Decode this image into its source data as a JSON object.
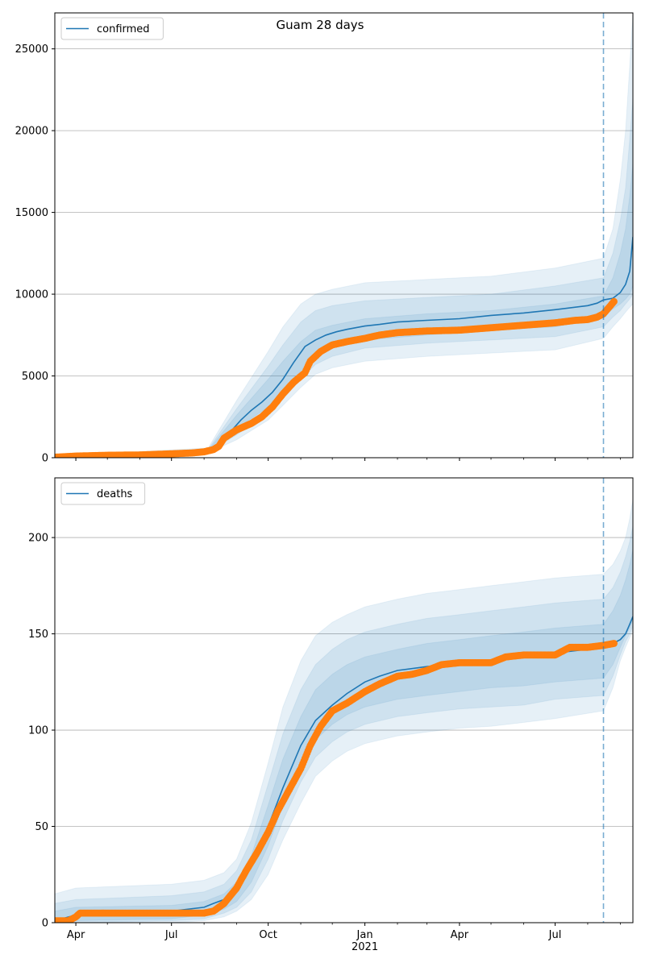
{
  "figure": {
    "title": "Guam 28 days"
  },
  "colors": {
    "model_line": "#1f77b4",
    "observed": "#ff7f0e",
    "band": "#1f77b4",
    "grid": "#b0b0b0",
    "forecast_marker": "#1f77b4"
  },
  "chart_data": [
    {
      "type": "line",
      "legend": "confirmed",
      "legend_position": "top-left",
      "grid": "y",
      "xlim": [
        "2020-03-12",
        "2021-09-13"
      ],
      "ylim": [
        0,
        27200
      ],
      "yticks": [
        0,
        5000,
        10000,
        15000,
        20000,
        25000
      ],
      "forecast_start": "2021-08-16",
      "series": [
        {
          "name": "confirmed",
          "kind": "model",
          "x": [
            "2020-03-12",
            "2020-06-01",
            "2020-07-15",
            "2020-08-05",
            "2020-08-15",
            "2020-08-25",
            "2020-09-05",
            "2020-09-15",
            "2020-09-25",
            "2020-10-05",
            "2020-10-15",
            "2020-10-25",
            "2020-11-05",
            "2020-11-15",
            "2020-11-25",
            "2020-12-05",
            "2020-12-15",
            "2021-01-01",
            "2021-01-15",
            "2021-02-01",
            "2021-03-01",
            "2021-04-01",
            "2021-05-01",
            "2021-06-01",
            "2021-07-01",
            "2021-08-01",
            "2021-08-10",
            "2021-08-16",
            "2021-08-25",
            "2021-09-01",
            "2021-09-06",
            "2021-09-10",
            "2021-09-13"
          ],
          "y": [
            60,
            150,
            250,
            420,
            800,
            1500,
            2300,
            2900,
            3400,
            4000,
            4800,
            5800,
            6800,
            7200,
            7500,
            7700,
            7850,
            8050,
            8150,
            8300,
            8400,
            8500,
            8700,
            8850,
            9050,
            9300,
            9450,
            9650,
            9750,
            10100,
            10600,
            11400,
            13500
          ]
        },
        {
          "name": "observed",
          "kind": "observed",
          "x": [
            "2020-03-12",
            "2020-04-01",
            "2020-05-01",
            "2020-06-01",
            "2020-07-01",
            "2020-07-20",
            "2020-08-01",
            "2020-08-10",
            "2020-08-15",
            "2020-08-20",
            "2020-09-01",
            "2020-09-15",
            "2020-09-25",
            "2020-10-05",
            "2020-10-15",
            "2020-10-25",
            "2020-11-05",
            "2020-11-10",
            "2020-11-20",
            "2020-12-01",
            "2020-12-15",
            "2021-01-01",
            "2021-01-15",
            "2021-02-01",
            "2021-03-01",
            "2021-04-01",
            "2021-05-01",
            "2021-06-01",
            "2021-07-01",
            "2021-07-20",
            "2021-08-01",
            "2021-08-10",
            "2021-08-16",
            "2021-08-20",
            "2021-08-26"
          ],
          "y": [
            30,
            100,
            150,
            170,
            240,
            290,
            360,
            500,
            700,
            1200,
            1700,
            2100,
            2500,
            3100,
            3900,
            4600,
            5200,
            5900,
            6500,
            6900,
            7100,
            7300,
            7500,
            7650,
            7750,
            7800,
            7950,
            8100,
            8250,
            8400,
            8450,
            8600,
            8800,
            9100,
            9550
          ]
        }
      ],
      "bands": [
        {
          "level": "outer",
          "x": [
            "2020-03-12",
            "2020-08-05",
            "2020-09-01",
            "2020-10-01",
            "2020-10-15",
            "2020-11-01",
            "2020-11-15",
            "2020-12-01",
            "2021-01-01",
            "2021-03-01",
            "2021-05-01",
            "2021-07-01",
            "2021-08-16",
            "2021-08-25",
            "2021-09-01",
            "2021-09-06",
            "2021-09-10",
            "2021-09-13"
          ],
          "lower": [
            40,
            300,
            1100,
            2300,
            3200,
            4300,
            5100,
            5500,
            5900,
            6200,
            6400,
            6600,
            7300,
            8000,
            8500,
            8900,
            9200,
            9400
          ],
          "upper": [
            100,
            600,
            3500,
            6500,
            8000,
            9400,
            10000,
            10300,
            10700,
            10900,
            11100,
            11600,
            12200,
            14000,
            17000,
            20000,
            24000,
            27200
          ]
        },
        {
          "level": "middle",
          "x": [
            "2020-03-12",
            "2020-08-05",
            "2020-09-01",
            "2020-10-01",
            "2020-10-15",
            "2020-11-01",
            "2020-11-15",
            "2020-12-01",
            "2021-01-01",
            "2021-03-01",
            "2021-05-01",
            "2021-07-01",
            "2021-08-16",
            "2021-08-25",
            "2021-09-01",
            "2021-09-06",
            "2021-09-10",
            "2021-09-13"
          ],
          "lower": [
            50,
            350,
            1400,
            2700,
            3600,
            4800,
            5700,
            6200,
            6700,
            7000,
            7200,
            7400,
            8000,
            8600,
            9000,
            9400,
            9700,
            10000
          ],
          "upper": [
            90,
            520,
            3000,
            5600,
            6900,
            8300,
            9000,
            9300,
            9600,
            9800,
            10000,
            10500,
            11000,
            12500,
            14500,
            16500,
            19500,
            22000
          ]
        },
        {
          "level": "inner",
          "x": [
            "2020-03-12",
            "2020-08-05",
            "2020-09-01",
            "2020-10-01",
            "2020-10-15",
            "2020-11-01",
            "2020-11-15",
            "2020-12-01",
            "2021-01-01",
            "2021-03-01",
            "2021-05-01",
            "2021-07-01",
            "2021-08-16",
            "2021-08-25",
            "2021-09-01",
            "2021-09-06",
            "2021-09-10",
            "2021-09-13"
          ],
          "lower": [
            55,
            380,
            1800,
            3100,
            4000,
            5300,
            6300,
            6800,
            7200,
            7500,
            7800,
            8000,
            8600,
            9100,
            9400,
            9700,
            10000,
            10500
          ],
          "upper": [
            80,
            470,
            2600,
            4800,
            5900,
            7100,
            7800,
            8100,
            8500,
            8800,
            9000,
            9400,
            9900,
            11000,
            12500,
            14000,
            16000,
            18000
          ]
        }
      ]
    },
    {
      "type": "line",
      "legend": "deaths",
      "legend_position": "top-left",
      "grid": "y",
      "xlim": [
        "2020-03-12",
        "2021-09-13"
      ],
      "ylim": [
        0,
        231
      ],
      "yticks": [
        0,
        50,
        100,
        150,
        200
      ],
      "xticks": [
        {
          "date": "2020-04-01",
          "label": "Apr"
        },
        {
          "date": "2020-07-01",
          "label": "Jul"
        },
        {
          "date": "2020-10-01",
          "label": "Oct"
        },
        {
          "date": "2021-01-01",
          "label": "Jan",
          "sublabel": "2021"
        },
        {
          "date": "2021-04-01",
          "label": "Apr"
        },
        {
          "date": "2021-07-01",
          "label": "Jul"
        }
      ],
      "minor_xticks": [
        "2020-05-01",
        "2020-06-01",
        "2020-08-01",
        "2020-09-01",
        "2020-11-01",
        "2020-12-01",
        "2021-02-01",
        "2021-03-01",
        "2021-05-01",
        "2021-06-01",
        "2021-08-01",
        "2021-09-01"
      ],
      "forecast_start": "2021-08-16",
      "series": [
        {
          "name": "deaths",
          "kind": "model",
          "x": [
            "2020-03-12",
            "2020-04-01",
            "2020-07-01",
            "2020-08-01",
            "2020-08-10",
            "2020-08-20",
            "2020-09-01",
            "2020-09-15",
            "2020-10-01",
            "2020-10-15",
            "2020-11-01",
            "2020-11-15",
            "2020-12-01",
            "2020-12-15",
            "2021-01-01",
            "2021-01-15",
            "2021-02-01",
            "2021-03-01",
            "2021-04-01",
            "2021-05-01",
            "2021-06-01",
            "2021-07-01",
            "2021-08-01",
            "2021-08-16",
            "2021-08-25",
            "2021-09-01",
            "2021-09-06",
            "2021-09-10",
            "2021-09-13"
          ],
          "y": [
            1,
            4,
            6,
            8,
            10,
            12,
            17,
            30,
            50,
            70,
            92,
            105,
            113,
            119,
            125,
            128,
            131,
            133,
            135,
            136,
            138,
            140,
            142,
            144,
            145,
            147,
            150,
            155,
            159
          ]
        },
        {
          "name": "observed",
          "kind": "observed",
          "x": [
            "2020-03-12",
            "2020-03-25",
            "2020-04-01",
            "2020-04-05",
            "2020-05-01",
            "2020-06-01",
            "2020-07-01",
            "2020-08-01",
            "2020-08-10",
            "2020-08-20",
            "2020-09-01",
            "2020-09-10",
            "2020-09-20",
            "2020-10-01",
            "2020-10-10",
            "2020-10-20",
            "2020-11-01",
            "2020-11-10",
            "2020-11-20",
            "2020-12-01",
            "2020-12-15",
            "2021-01-01",
            "2021-01-15",
            "2021-02-01",
            "2021-02-15",
            "2021-03-01",
            "2021-03-15",
            "2021-04-01",
            "2021-05-01",
            "2021-05-15",
            "2021-06-01",
            "2021-06-15",
            "2021-07-01",
            "2021-07-15",
            "2021-08-01",
            "2021-08-16",
            "2021-08-26"
          ],
          "y": [
            1,
            1,
            3,
            5,
            5,
            5,
            5,
            5,
            6,
            10,
            18,
            27,
            36,
            47,
            58,
            68,
            80,
            92,
            102,
            110,
            114,
            120,
            124,
            128,
            129,
            131,
            134,
            135,
            135,
            138,
            139,
            139,
            139,
            143,
            143,
            144,
            145
          ]
        }
      ],
      "bands": [
        {
          "level": "outer",
          "x": [
            "2020-03-12",
            "2020-04-01",
            "2020-07-01",
            "2020-08-01",
            "2020-08-20",
            "2020-09-01",
            "2020-09-15",
            "2020-10-01",
            "2020-10-15",
            "2020-11-01",
            "2020-11-15",
            "2020-12-01",
            "2020-12-15",
            "2021-01-01",
            "2021-02-01",
            "2021-03-01",
            "2021-04-01",
            "2021-05-01",
            "2021-06-01",
            "2021-07-01",
            "2021-08-16",
            "2021-08-25",
            "2021-09-01",
            "2021-09-06",
            "2021-09-10",
            "2021-09-13"
          ],
          "lower": [
            0,
            0,
            0,
            1,
            3,
            6,
            12,
            25,
            43,
            62,
            76,
            84,
            89,
            93,
            97,
            99,
            101,
            102,
            104,
            106,
            110,
            122,
            136,
            143,
            148,
            152
          ],
          "upper": [
            15,
            18,
            20,
            22,
            26,
            33,
            52,
            83,
            112,
            136,
            149,
            156,
            160,
            164,
            168,
            171,
            173,
            175,
            177,
            179,
            181,
            186,
            193,
            200,
            210,
            220
          ]
        },
        {
          "level": "middle",
          "x": [
            "2020-03-12",
            "2020-04-01",
            "2020-07-01",
            "2020-08-01",
            "2020-08-20",
            "2020-09-01",
            "2020-09-15",
            "2020-10-01",
            "2020-10-15",
            "2020-11-01",
            "2020-11-15",
            "2020-12-01",
            "2020-12-15",
            "2021-01-01",
            "2021-02-01",
            "2021-03-01",
            "2021-04-01",
            "2021-05-01",
            "2021-06-01",
            "2021-07-01",
            "2021-08-16",
            "2021-08-25",
            "2021-09-01",
            "2021-09-06",
            "2021-09-10",
            "2021-09-13"
          ],
          "lower": [
            0,
            0,
            1,
            2,
            5,
            8,
            16,
            33,
            53,
            73,
            86,
            94,
            99,
            103,
            107,
            109,
            111,
            112,
            113,
            116,
            118,
            128,
            139,
            146,
            150,
            154
          ],
          "upper": [
            10,
            12,
            14,
            16,
            20,
            27,
            43,
            72,
            98,
            121,
            134,
            142,
            147,
            151,
            155,
            158,
            160,
            162,
            164,
            166,
            168,
            174,
            182,
            190,
            198,
            206
          ]
        },
        {
          "level": "inner",
          "x": [
            "2020-03-12",
            "2020-04-01",
            "2020-07-01",
            "2020-08-01",
            "2020-08-20",
            "2020-09-01",
            "2020-09-15",
            "2020-10-01",
            "2020-10-15",
            "2020-11-01",
            "2020-11-15",
            "2020-12-01",
            "2020-12-15",
            "2021-01-01",
            "2021-02-01",
            "2021-03-01",
            "2021-04-01",
            "2021-05-01",
            "2021-06-01",
            "2021-07-01",
            "2021-08-16",
            "2021-08-25",
            "2021-09-01",
            "2021-09-06",
            "2021-09-10",
            "2021-09-13"
          ],
          "lower": [
            0,
            1,
            2,
            4,
            7,
            11,
            21,
            40,
            61,
            82,
            95,
            103,
            108,
            112,
            116,
            118,
            120,
            122,
            123,
            125,
            127,
            134,
            143,
            149,
            153,
            157
          ],
          "upper": [
            6,
            8,
            9,
            11,
            15,
            21,
            35,
            61,
            85,
            107,
            121,
            129,
            134,
            138,
            142,
            145,
            147,
            149,
            151,
            153,
            155,
            162,
            170,
            178,
            186,
            194
          ]
        }
      ]
    }
  ]
}
